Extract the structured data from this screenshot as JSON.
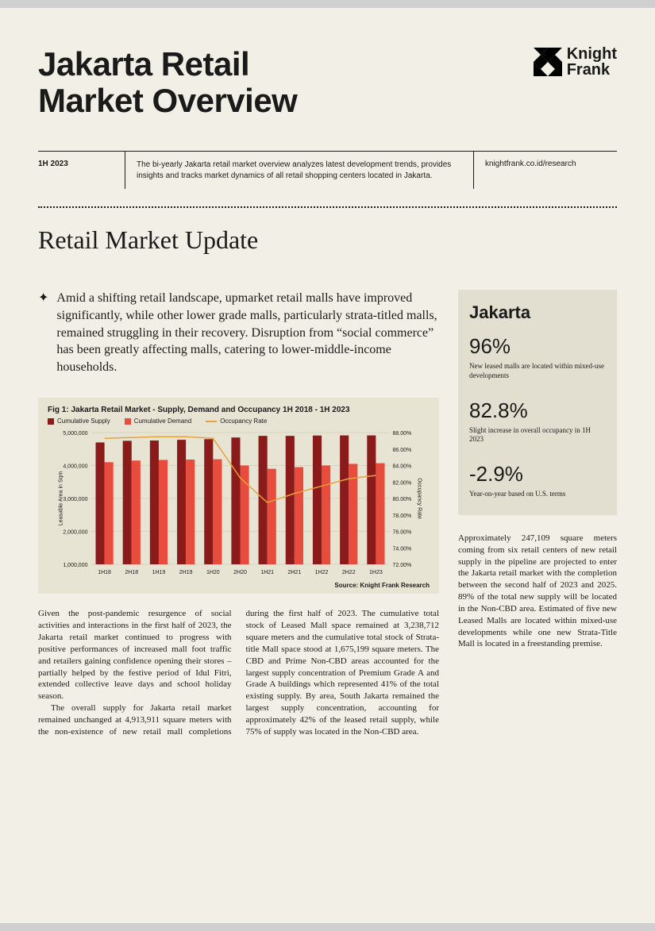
{
  "header": {
    "title_line1": "Jakarta Retail",
    "title_line2": "Market Overview",
    "logo_line1": "Knight",
    "logo_line2": "Frank",
    "logo_color": "#000000"
  },
  "meta": {
    "period": "1H 2023",
    "description": "The bi-yearly Jakarta retail market overview analyzes latest development trends, provides insights and tracks market dynamics of all retail shopping centers located in Jakarta.",
    "link": "knightfrank.co.id/research"
  },
  "section_heading": "Retail Market Update",
  "lead": "Amid a shifting retail landscape, upmarket retail malls have improved significantly, while other lower grade malls, particularly strata-titled malls, remained struggling in their recovery. Disruption from “social commerce” has been greatly affecting malls, catering to lower-middle-income households.",
  "chart": {
    "type": "grouped-bar-with-line",
    "title": "Fig 1: Jakarta Retail Market - Supply, Demand and Occupancy  1H 2018 - 1H 2023",
    "legend": {
      "supply": "Cumulative Supply",
      "demand": "Cumulative Demand",
      "occupancy": "Occupancy Rate"
    },
    "categories": [
      "1H18",
      "2H18",
      "1H19",
      "2H19",
      "1H20",
      "2H20",
      "1H21",
      "2H21",
      "1H22",
      "2H22",
      "1H23"
    ],
    "supply_values": [
      4700000,
      4750000,
      4760000,
      4780000,
      4800000,
      4850000,
      4900000,
      4900000,
      4910000,
      4913911,
      4913911
    ],
    "demand_values": [
      4100000,
      4150000,
      4170000,
      4180000,
      4190000,
      4000000,
      3900000,
      3950000,
      4000000,
      4050000,
      4070000
    ],
    "occupancy_values": [
      87.3,
      87.4,
      87.5,
      87.5,
      87.3,
      82.5,
      79.5,
      80.6,
      81.5,
      82.4,
      82.8
    ],
    "y_left": {
      "label": "Leasable Area in Sqm",
      "min": 1000000,
      "max": 5000000,
      "ticks": [
        1000000,
        2000000,
        3000000,
        4000000,
        5000000
      ]
    },
    "y_right": {
      "label": "Occupancy Rate",
      "min": 72,
      "max": 88,
      "ticks": [
        72,
        74,
        76,
        78,
        80,
        82,
        84,
        86,
        88
      ]
    },
    "colors": {
      "supply": "#8b1a1a",
      "demand": "#e74c3c",
      "occupancy": "#e8a23a",
      "grid": "#c8c2ae",
      "axis_text": "#1a1a1a",
      "background": "#e8e4d4"
    },
    "fontsize": {
      "title": 10,
      "axis": 7,
      "legend": 8
    },
    "bar_group_gap_ratio": 0.35,
    "source": "Source: Knight Frank Research"
  },
  "body": {
    "p1": "Given the post-pandemic resurgence of social activities and interactions in the first half of 2023, the Jakarta retail market continued to progress with positive performances of increased mall foot traffic and retailers gaining confidence opening their stores – partially helped by the festive period of Idul Fitri, extended collective leave days and school holiday season.",
    "p2": "The overall supply for Jakarta retail market remained unchanged at 4,913,911 square meters with the non-existence of new retail mall completions during the first half of 2023. The cumulative total stock of Leased Mall space remained at 3,238,712 square meters and the cumulative total stock of Strata-title Mall space stood at 1,675,199 square meters. The CBD and Prime Non-CBD areas accounted for the largest supply concentration of Premium Grade A and Grade A buildings which represented 41% of the total existing supply. By area, South Jakarta remained the largest supply concentration, accounting for approximately 42% of the leased retail supply, while 75% of supply was located in the Non-CBD area."
  },
  "stats": {
    "title": "Jakarta",
    "items": [
      {
        "value": "96%",
        "caption": "New leased malls are located within mixed-use developments"
      },
      {
        "value": "82.8%",
        "caption": "Slight increase in overall occupancy in 1H 2023"
      },
      {
        "value": "-2.9%",
        "caption": "Year-on-year based on U.S. terms"
      }
    ]
  },
  "right_body": "Approximately 247,109 square meters coming from six  retail centers of new retail supply in the pipeline are projected to enter the Jakarta retail market with the completion between the second half of 2023 and 2025. 89% of the total new supply will be located in the Non-CBD area. Estimated of five new Leased Malls are located within mixed-use developments while one new Strata-Title Mall is located in a freestanding premise.",
  "palette": {
    "page_bg": "#f2f0e6",
    "panel_bg": "#e8e4d4",
    "stats_bg": "#e2dfd0",
    "text": "#1a1a1a"
  }
}
